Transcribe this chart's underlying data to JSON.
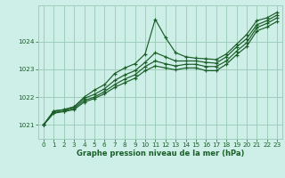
{
  "bg_color": "#ceeee8",
  "grid_color": "#a0ccbb",
  "line_color": "#1a5e28",
  "title": "Graphe pression niveau de la mer (hPa)",
  "ylim": [
    1020.5,
    1025.3
  ],
  "xlim": [
    -0.5,
    23.5
  ],
  "yticks": [
    1021,
    1022,
    1023,
    1024
  ],
  "xticks": [
    0,
    1,
    2,
    3,
    4,
    5,
    6,
    7,
    8,
    9,
    10,
    11,
    12,
    13,
    14,
    15,
    16,
    17,
    18,
    19,
    20,
    21,
    22,
    23
  ],
  "series": [
    [
      1021.0,
      1021.5,
      1021.55,
      1021.65,
      1022.0,
      1022.25,
      1022.45,
      1022.85,
      1023.05,
      1023.2,
      1023.55,
      1024.8,
      1024.15,
      1023.6,
      1023.45,
      1023.4,
      1023.38,
      1023.35,
      1023.55,
      1023.9,
      1024.25,
      1024.75,
      1024.85,
      1025.05
    ],
    [
      1021.0,
      1021.5,
      1021.55,
      1021.65,
      1021.95,
      1022.1,
      1022.3,
      1022.6,
      1022.8,
      1022.95,
      1023.25,
      1023.6,
      1023.45,
      1023.3,
      1023.3,
      1023.3,
      1023.25,
      1023.22,
      1023.45,
      1023.8,
      1024.1,
      1024.6,
      1024.75,
      1024.95
    ],
    [
      1021.0,
      1021.45,
      1021.5,
      1021.6,
      1021.88,
      1022.0,
      1022.2,
      1022.45,
      1022.65,
      1022.8,
      1023.1,
      1023.3,
      1023.2,
      1023.12,
      1023.18,
      1023.18,
      1023.1,
      1023.1,
      1023.3,
      1023.65,
      1023.95,
      1024.5,
      1024.65,
      1024.85
    ],
    [
      1021.0,
      1021.42,
      1021.48,
      1021.55,
      1021.82,
      1021.95,
      1022.12,
      1022.35,
      1022.52,
      1022.68,
      1022.95,
      1023.12,
      1023.05,
      1022.98,
      1023.05,
      1023.05,
      1022.95,
      1022.95,
      1023.18,
      1023.52,
      1023.82,
      1024.38,
      1024.52,
      1024.72
    ]
  ]
}
